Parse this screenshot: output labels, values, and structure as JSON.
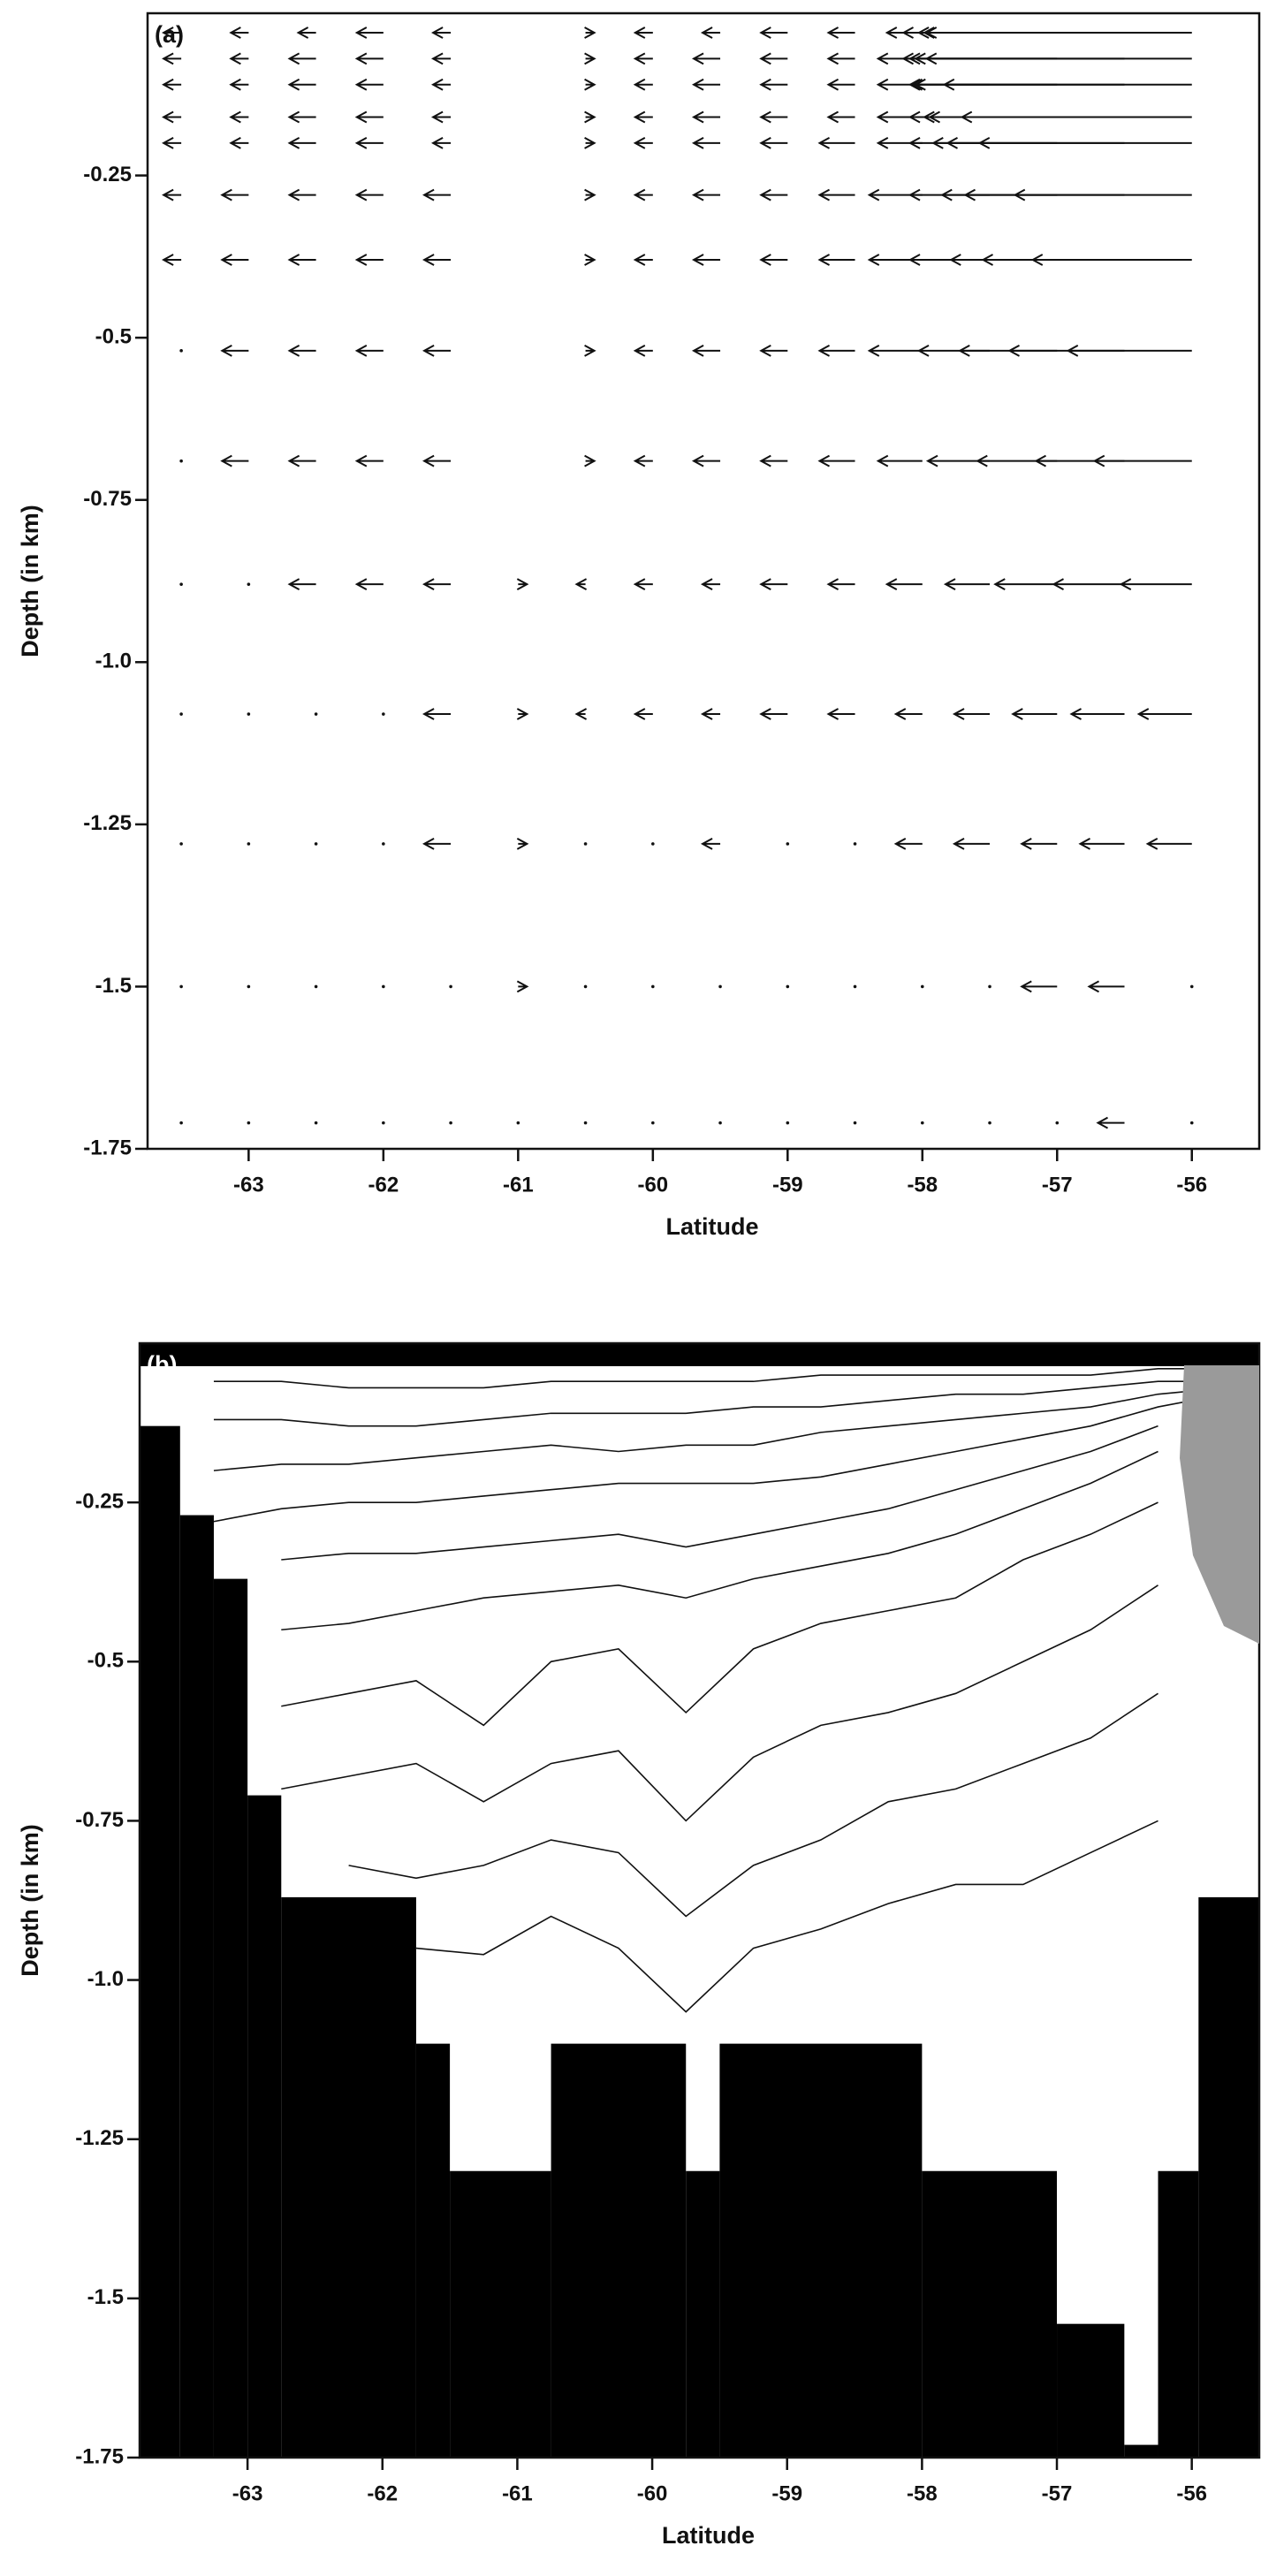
{
  "chart_data": [
    {
      "type": "quiver",
      "panel_label": "(a)",
      "x_label": "Latitude",
      "y_label": "Depth (in km)",
      "xlim": [
        -63.75,
        -55.5
      ],
      "ylim": [
        -1.75,
        0
      ],
      "xticks": [
        -63,
        -62,
        -61,
        -60,
        -59,
        -58,
        -57,
        -56
      ],
      "yticks": [
        -0.25,
        -0.5,
        -0.75,
        {
          "value": -1,
          "label": "-1.0"
        },
        -1.25,
        -1.5,
        -1.75
      ],
      "color": "#111111",
      "x": [
        -63.5,
        -63,
        -62.5,
        -62,
        -61.5,
        -61,
        -60.5,
        -60,
        -59.5,
        -59,
        -58.5,
        -58,
        -57.5,
        -57,
        -56.5,
        -56
      ],
      "depths": [
        -0.03,
        -0.07,
        -0.11,
        -0.16,
        -0.2,
        -0.28,
        -0.38,
        -0.52,
        -0.69,
        -0.88,
        -1.08,
        -1.28,
        -1.5,
        -1.71
      ],
      "u": [
        [
          -2,
          -2,
          -2,
          -3,
          -2,
          null,
          1,
          -2,
          -2,
          -3,
          -3,
          -4,
          -8,
          -15,
          -25,
          -30
        ],
        [
          -2,
          -2,
          -3,
          -3,
          -2,
          null,
          1,
          -2,
          -3,
          -3,
          -3,
          -5,
          -9,
          -16,
          -25,
          -30
        ],
        [
          -2,
          -2,
          -3,
          -3,
          -2,
          null,
          1,
          -2,
          -3,
          -3,
          -3,
          -5,
          -9,
          -16,
          -24,
          -28
        ],
        [
          -2,
          -2,
          -3,
          -3,
          -2,
          null,
          1,
          -2,
          -3,
          -3,
          -3,
          -5,
          -9,
          -15,
          -22,
          -26
        ],
        [
          -2,
          -2,
          -3,
          -3,
          -2,
          null,
          1,
          -2,
          -3,
          -3,
          -4,
          -5,
          -9,
          -14,
          -20,
          -24
        ],
        [
          -2,
          -3,
          -3,
          -3,
          -3,
          null,
          1,
          -2,
          -3,
          -3,
          -4,
          -6,
          -9,
          -13,
          -18,
          -20
        ],
        [
          -2,
          -3,
          -3,
          -3,
          -3,
          null,
          1,
          -2,
          -3,
          -3,
          -4,
          -6,
          -9,
          -12,
          -16,
          -18
        ],
        [
          -0.5,
          -3,
          -3,
          -3,
          -3,
          null,
          1,
          -2,
          -3,
          -3,
          -4,
          -6,
          -8,
          -11,
          -13,
          -14
        ],
        [
          -0.5,
          -3,
          -3,
          -3,
          -3,
          null,
          1,
          -2,
          -3,
          -3,
          -4,
          -5,
          -7,
          -9,
          -10,
          -11
        ],
        [
          -0.5,
          -0.5,
          -3,
          -3,
          -3,
          1,
          -1,
          -2,
          -2,
          -3,
          -3,
          -4,
          -5,
          -7,
          -8,
          -8
        ],
        [
          -0.5,
          -0.5,
          -0.5,
          -0.5,
          -3,
          1,
          -1,
          -2,
          -2,
          -3,
          -3,
          -3,
          -4,
          -5,
          -6,
          -6
        ],
        [
          -0.5,
          -0.5,
          -0.5,
          -0.5,
          -3,
          1,
          0.5,
          -0.5,
          -2,
          -0.5,
          -0.5,
          -3,
          -4,
          -4,
          -5,
          -5
        ],
        [
          -0.5,
          -0.5,
          -0.5,
          -0.5,
          -0.5,
          1,
          -0.5,
          -0.5,
          -0.5,
          -0.5,
          -0.5,
          -0.5,
          -0.5,
          -4,
          -4,
          -0.5
        ],
        [
          -0.5,
          -0.5,
          -0.5,
          -0.5,
          -0.5,
          -0.5,
          -0.5,
          -0.5,
          -0.5,
          -0.5,
          -0.5,
          -0.5,
          -0.5,
          -0.5,
          -3,
          -0.5
        ]
      ]
    },
    {
      "type": "contour",
      "panel_label": "(b)",
      "x_label": "Latitude",
      "y_label": "Depth (in km)",
      "xlim": [
        -63.8,
        -55.5
      ],
      "ylim": [
        -1.75,
        0
      ],
      "xticks": [
        -63,
        -62,
        -61,
        -60,
        -59,
        -58,
        -57,
        -56
      ],
      "yticks": [
        -0.25,
        -0.5,
        -0.75,
        {
          "value": -1,
          "label": "-1.0"
        },
        -1.25,
        -1.5,
        -1.75
      ],
      "color": "#111111",
      "bottom_color": "#000000",
      "contour_x": [
        -63.25,
        -62.75,
        -62.25,
        -61.75,
        -61.25,
        -60.75,
        -60.25,
        -59.75,
        -59.25,
        -58.75,
        -58.25,
        -57.75,
        -57.25,
        -56.75,
        -56.25,
        -55.75
      ],
      "contours": [
        [
          -0.06,
          -0.06,
          -0.07,
          -0.07,
          -0.07,
          -0.06,
          -0.06,
          -0.06,
          -0.06,
          -0.05,
          -0.05,
          -0.05,
          -0.05,
          -0.05,
          -0.04,
          -0.04
        ],
        [
          -0.12,
          -0.12,
          -0.13,
          -0.13,
          -0.12,
          -0.11,
          -0.11,
          -0.11,
          -0.1,
          -0.1,
          -0.09,
          -0.08,
          -0.08,
          -0.07,
          -0.06,
          -0.06
        ],
        [
          -0.2,
          -0.19,
          -0.19,
          -0.18,
          -0.17,
          -0.16,
          -0.17,
          -0.16,
          -0.16,
          -0.14,
          -0.13,
          -0.12,
          -0.11,
          -0.1,
          -0.08,
          -0.07
        ],
        [
          -0.28,
          -0.26,
          -0.25,
          -0.25,
          -0.24,
          -0.23,
          -0.22,
          -0.22,
          -0.22,
          -0.21,
          -0.19,
          -0.17,
          -0.15,
          -0.13,
          -0.1,
          -0.08
        ],
        [
          null,
          -0.34,
          -0.33,
          -0.33,
          -0.32,
          -0.31,
          -0.3,
          -0.32,
          -0.3,
          -0.28,
          -0.26,
          -0.23,
          -0.2,
          -0.17,
          -0.13,
          null
        ],
        [
          null,
          -0.45,
          -0.44,
          -0.42,
          -0.4,
          -0.39,
          -0.38,
          -0.4,
          -0.37,
          -0.35,
          -0.33,
          -0.3,
          -0.26,
          -0.22,
          -0.17,
          null
        ],
        [
          null,
          -0.57,
          -0.55,
          -0.53,
          -0.6,
          -0.5,
          -0.48,
          -0.58,
          -0.48,
          -0.44,
          -0.42,
          -0.4,
          -0.34,
          -0.3,
          -0.25,
          null
        ],
        [
          null,
          -0.7,
          -0.68,
          -0.66,
          -0.72,
          -0.66,
          -0.64,
          -0.75,
          -0.65,
          -0.6,
          -0.58,
          -0.55,
          -0.5,
          -0.45,
          -0.38,
          null
        ],
        [
          null,
          null,
          -0.82,
          -0.84,
          -0.82,
          -0.78,
          -0.8,
          -0.9,
          -0.82,
          -0.78,
          -0.72,
          -0.7,
          -0.66,
          -0.62,
          -0.55,
          null
        ],
        [
          null,
          null,
          null,
          -0.95,
          -0.96,
          -0.9,
          -0.95,
          -1.05,
          -0.95,
          -0.92,
          -0.88,
          -0.85,
          -0.85,
          -0.8,
          -0.75,
          null
        ]
      ],
      "bottom_edges": [
        -63.8,
        -63.5,
        -63.25,
        -63,
        -62.75,
        -61.75,
        -61.5,
        -60.75,
        -59.75,
        -59.5,
        -58,
        -57,
        -56.5,
        -56.25,
        -55.95,
        -55.5
      ],
      "bottom_depths": [
        -0.13,
        -0.27,
        -0.37,
        -0.71,
        -0.87,
        -1.1,
        -1.3,
        -1.1,
        -1.3,
        -1.1,
        -1.3,
        -1.54,
        -1.73,
        -1.3,
        -0.87
      ]
    }
  ]
}
